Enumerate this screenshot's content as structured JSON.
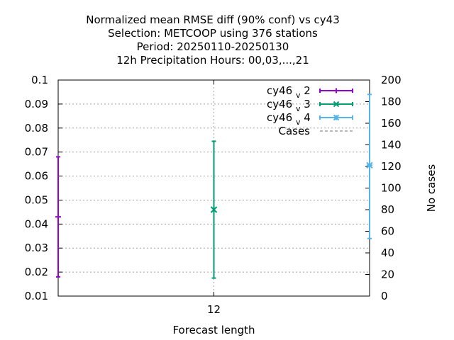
{
  "chart_data": {
    "type": "errorbar",
    "title_lines": [
      "Normalized mean RMSE diff (90% conf) vs cy43",
      "Selection: METCOOP using   376 stations",
      "Period: 20250110-20250130",
      "12h Precipitation   Hours:  00,03,...,21"
    ],
    "xlabel": "Forecast length",
    "y2label": "No cases",
    "x_ticks": [
      "12"
    ],
    "ylim": [
      0.01,
      0.1
    ],
    "y_ticks": [
      "0.1",
      "0.09",
      "0.08",
      "0.07",
      "0.06",
      "0.05",
      "0.04",
      "0.03",
      "0.02",
      "0.01"
    ],
    "y2lim": [
      0,
      200
    ],
    "y2_ticks": [
      "200",
      "180",
      "160",
      "140",
      "120",
      "100",
      "80",
      "60",
      "40",
      "20",
      "0"
    ],
    "grid": true,
    "legend_position": "top-right",
    "series": [
      {
        "base": "cy46",
        "sub": "v",
        "suffix": "2",
        "color": "#9400d3",
        "marker": "plus",
        "x_position": "left edge",
        "mean": 0.043,
        "low": 0.018,
        "high": 0.068
      },
      {
        "base": "cy46",
        "sub": "v",
        "suffix": "3",
        "color": "#009e73",
        "marker": "cross",
        "x_position": "12",
        "mean": 0.046,
        "low": 0.0175,
        "high": 0.0745
      },
      {
        "base": "cy46",
        "sub": "v",
        "suffix": "4",
        "color": "#56b4e9",
        "marker": "star",
        "x_position": "right edge",
        "mean": 0.0645,
        "low": 0.034,
        "high": 0.094
      }
    ],
    "cases": {
      "label": "Cases",
      "color": "#a0a0a0",
      "dash": "dashed"
    }
  }
}
